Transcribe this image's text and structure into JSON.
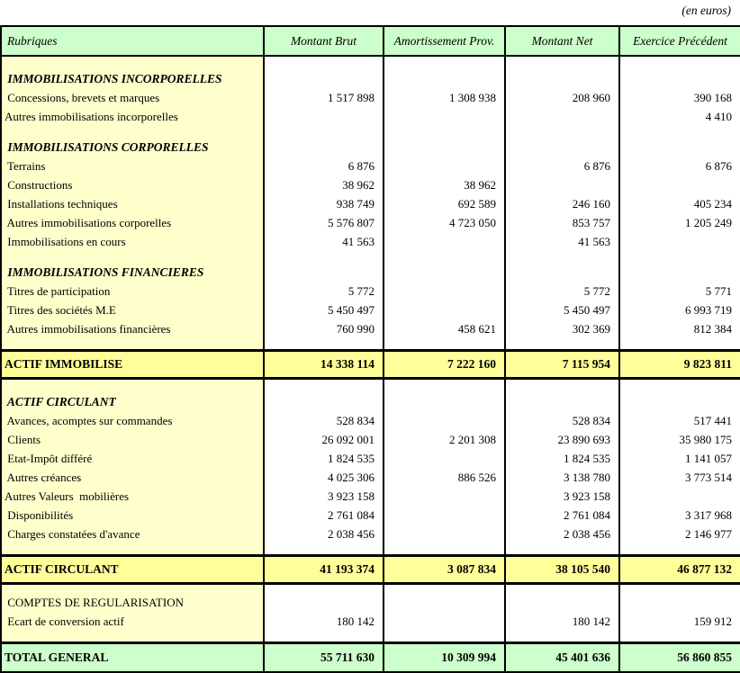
{
  "unit_note": "(en euros)",
  "colors": {
    "header_green": "#ccffcc",
    "label_yellow": "#ffffcc",
    "total_yellow": "#ffff99",
    "grand_green": "#ccffcc",
    "border": "#000000"
  },
  "table": {
    "columns": [
      "Rubriques",
      "Montant Brut",
      "Amortissement Prov.",
      "Montant Net",
      "Exercice Précédent"
    ],
    "rows": [
      {
        "type": "section",
        "label": " IMMOBILISATIONS INCORPORELLES",
        "values": [
          "",
          "",
          "",
          ""
        ]
      },
      {
        "type": "item",
        "label": " Concessions, brevets et marques",
        "values": [
          "1 517 898",
          "1 308 938",
          "208 960",
          "390 168"
        ]
      },
      {
        "type": "item",
        "label": "Autres immobilisations incorporelles",
        "values": [
          "",
          "",
          "",
          "4 410"
        ]
      },
      {
        "type": "section",
        "label": " IMMOBILISATIONS CORPORELLES",
        "values": [
          "",
          "",
          "",
          ""
        ]
      },
      {
        "type": "item",
        "label": " Terrains",
        "values": [
          "6 876",
          "",
          "6 876",
          "6 876"
        ]
      },
      {
        "type": "item",
        "label": " Constructions",
        "values": [
          "38 962",
          "38 962",
          "",
          ""
        ]
      },
      {
        "type": "item",
        "label": " Installations techniques",
        "values": [
          "938 749",
          "692 589",
          "246 160",
          "405 234"
        ]
      },
      {
        "type": "item",
        "label": " Autres immobilisations corporelles",
        "values": [
          "5 576 807",
          "4 723 050",
          "853 757",
          "1 205 249"
        ]
      },
      {
        "type": "item",
        "label": " Immobilisations en cours",
        "values": [
          "41 563",
          "",
          "41 563",
          ""
        ]
      },
      {
        "type": "section",
        "label": " IMMOBILISATIONS FINANCIERES",
        "values": [
          "",
          "",
          "",
          ""
        ]
      },
      {
        "type": "item",
        "label": " Titres de participation",
        "values": [
          "5 772",
          "",
          "5 772",
          "5 771"
        ]
      },
      {
        "type": "item",
        "label": " Titres des sociétés M.E",
        "values": [
          "5 450 497",
          "",
          "5 450 497",
          "6 993 719"
        ]
      },
      {
        "type": "item",
        "label": " Autres immobilisations financières",
        "values": [
          "760 990",
          "458 621",
          "302 369",
          "812 384"
        ]
      },
      {
        "type": "spacer",
        "label": "",
        "values": [
          "",
          "",
          "",
          ""
        ]
      },
      {
        "type": "total",
        "label": "ACTIF IMMOBILISE",
        "values": [
          "14 338 114",
          "7 222 160",
          "7 115 954",
          "9 823 811"
        ]
      },
      {
        "type": "section",
        "label": " ACTIF CIRCULANT",
        "values": [
          "",
          "",
          "",
          ""
        ]
      },
      {
        "type": "item",
        "label": " Avances, acomptes sur commandes",
        "values": [
          "528 834",
          "",
          "528 834",
          "517 441"
        ]
      },
      {
        "type": "item",
        "label": " Clients",
        "values": [
          "26 092 001",
          "2 201 308",
          "23 890 693",
          "35 980 175"
        ]
      },
      {
        "type": "item",
        "label": " Etat-Impôt différé",
        "values": [
          "1 824 535",
          "",
          "1 824 535",
          "1 141 057"
        ]
      },
      {
        "type": "item",
        "label": " Autres créances",
        "values": [
          "4 025 306",
          "886 526",
          "3 138 780",
          "3 773 514"
        ]
      },
      {
        "type": "item",
        "label": "Autres Valeurs  mobilières",
        "values": [
          "3 923 158",
          "",
          "3 923 158",
          ""
        ]
      },
      {
        "type": "item",
        "label": " Disponibilités",
        "values": [
          "2 761 084",
          "",
          "2 761 084",
          "3 317 968"
        ]
      },
      {
        "type": "item",
        "label": " Charges constatées d'avance",
        "values": [
          "2 038 456",
          "",
          "2 038 456",
          "2 146 977"
        ]
      },
      {
        "type": "spacer",
        "label": "",
        "values": [
          "",
          "",
          "",
          ""
        ]
      },
      {
        "type": "total",
        "label": "ACTIF CIRCULANT",
        "values": [
          "41 193 374",
          "3 087 834",
          "38 105 540",
          "46 877 132"
        ]
      },
      {
        "type": "section-plain",
        "label": " COMPTES DE REGULARISATION",
        "values": [
          "",
          "",
          "",
          ""
        ]
      },
      {
        "type": "item",
        "label": " Ecart de conversion actif",
        "values": [
          "180 142",
          "",
          "180 142",
          "159 912"
        ]
      },
      {
        "type": "spacer",
        "label": "",
        "values": [
          "",
          "",
          "",
          ""
        ]
      },
      {
        "type": "grand",
        "label": "TOTAL GENERAL",
        "values": [
          "55 711 630",
          "10 309 994",
          "45 401 636",
          "56 860 855"
        ]
      }
    ]
  }
}
